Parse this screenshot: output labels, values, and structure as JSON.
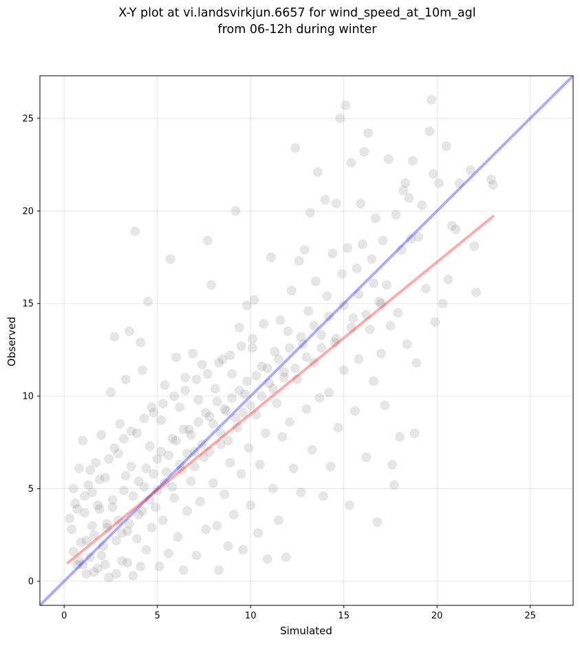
{
  "chart_data": {
    "type": "scatter",
    "title_line1": "X-Y plot at vi.landsvirkjun.6657 for wind_speed_at_10m_agl",
    "title_line2": "from 06-12h during winter",
    "xlabel": "Simulated",
    "ylabel": "Observed",
    "xlim": [
      -1.3,
      27.3
    ],
    "ylim": [
      -1.3,
      27.3
    ],
    "xticks": [
      0,
      5,
      10,
      15,
      20,
      25
    ],
    "yticks": [
      0,
      5,
      10,
      15,
      20,
      25
    ],
    "grid": true,
    "colors": {
      "points": "#808080",
      "identity_line": "#0000ff",
      "fit_line": "#ff0000"
    },
    "identity_line": {
      "x": [
        -1.3,
        27.3
      ],
      "y": [
        -1.3,
        27.3
      ]
    },
    "fit_line": {
      "x": [
        0.2,
        23.0
      ],
      "y": [
        1.0,
        19.7
      ]
    },
    "points": [
      [
        0.3,
        3.4
      ],
      [
        0.4,
        2.8
      ],
      [
        0.5,
        1.6
      ],
      [
        0.6,
        4.2
      ],
      [
        0.7,
        0.9
      ],
      [
        0.8,
        6.1
      ],
      [
        0.9,
        2.1
      ],
      [
        1.0,
        7.6
      ],
      [
        1.1,
        3.7
      ],
      [
        1.2,
        0.4
      ],
      [
        1.3,
        5.2
      ],
      [
        1.4,
        1.3
      ],
      [
        1.5,
        4.8
      ],
      [
        1.6,
        2.5
      ],
      [
        1.7,
        6.4
      ],
      [
        1.8,
        0.7
      ],
      [
        1.9,
        3.9
      ],
      [
        2.0,
        7.9
      ],
      [
        2.1,
        1.9
      ],
      [
        2.2,
        5.6
      ],
      [
        2.3,
        3.1
      ],
      [
        2.4,
        0.2
      ],
      [
        2.5,
        10.2
      ],
      [
        2.6,
        4.4
      ],
      [
        2.7,
        13.2
      ],
      [
        2.8,
        2.2
      ],
      [
        2.9,
        6.9
      ],
      [
        3.0,
        8.5
      ],
      [
        3.1,
        1.1
      ],
      [
        3.2,
        4.9
      ],
      [
        3.3,
        10.9
      ],
      [
        3.4,
        2.7
      ],
      [
        3.5,
        13.5
      ],
      [
        3.6,
        6.2
      ],
      [
        3.7,
        0.3
      ],
      [
        3.8,
        18.9
      ],
      [
        3.9,
        8.0
      ],
      [
        4.0,
        3.6
      ],
      [
        4.1,
        12.9
      ],
      [
        4.2,
        11.4
      ],
      [
        4.3,
        5.1
      ],
      [
        4.4,
        1.7
      ],
      [
        4.5,
        15.1
      ],
      [
        4.6,
        7.3
      ],
      [
        4.7,
        2.9
      ],
      [
        4.8,
        9.1
      ],
      [
        4.9,
        4.0
      ],
      [
        5.0,
        6.6
      ],
      [
        5.1,
        0.8
      ],
      [
        5.2,
        8.7
      ],
      [
        5.3,
        3.3
      ],
      [
        5.4,
        10.6
      ],
      [
        5.5,
        5.9
      ],
      [
        5.6,
        1.5
      ],
      [
        5.7,
        17.4
      ],
      [
        5.8,
        7.7
      ],
      [
        5.9,
        4.5
      ],
      [
        6.0,
        12.1
      ],
      [
        6.1,
        2.4
      ],
      [
        6.2,
        9.4
      ],
      [
        6.3,
        6.0
      ],
      [
        6.4,
        0.6
      ],
      [
        6.5,
        11.0
      ],
      [
        6.6,
        3.8
      ],
      [
        6.7,
        8.2
      ],
      [
        6.8,
        5.4
      ],
      [
        6.9,
        12.3
      ],
      [
        7.0,
        7.0
      ],
      [
        7.1,
        1.4
      ],
      [
        7.2,
        9.8
      ],
      [
        7.3,
        4.3
      ],
      [
        7.4,
        11.7
      ],
      [
        7.5,
        6.7
      ],
      [
        7.6,
        2.8
      ],
      [
        7.7,
        18.4
      ],
      [
        7.8,
        8.9
      ],
      [
        7.9,
        16.0
      ],
      [
        8.0,
        5.3
      ],
      [
        8.1,
        10.4
      ],
      [
        8.2,
        3.0
      ],
      [
        8.3,
        0.6
      ],
      [
        8.4,
        7.4
      ],
      [
        8.5,
        12.0
      ],
      [
        8.6,
        4.7
      ],
      [
        8.7,
        9.2
      ],
      [
        8.8,
        1.9
      ],
      [
        8.9,
        6.4
      ],
      [
        9.0,
        11.2
      ],
      [
        9.1,
        3.6
      ],
      [
        9.2,
        20.0
      ],
      [
        9.3,
        8.3
      ],
      [
        9.4,
        13.7
      ],
      [
        9.5,
        5.8
      ],
      [
        9.6,
        1.7
      ],
      [
        9.7,
        10.1
      ],
      [
        9.8,
        14.9
      ],
      [
        9.9,
        7.2
      ],
      [
        10.0,
        4.1
      ],
      [
        10.1,
        12.6
      ],
      [
        10.2,
        15.2
      ],
      [
        10.3,
        9.0
      ],
      [
        10.4,
        2.6
      ],
      [
        10.5,
        6.3
      ],
      [
        10.6,
        11.6
      ],
      [
        10.7,
        13.9
      ],
      [
        10.8,
        8.0
      ],
      [
        10.9,
        1.2
      ],
      [
        11.0,
        10.7
      ],
      [
        11.1,
        17.5
      ],
      [
        11.2,
        5.0
      ],
      [
        11.3,
        12.4
      ],
      [
        11.4,
        9.6
      ],
      [
        11.5,
        3.3
      ],
      [
        11.6,
        14.1
      ],
      [
        11.7,
        7.8
      ],
      [
        11.8,
        11.3
      ],
      [
        11.9,
        1.3
      ],
      [
        12.0,
        13.5
      ],
      [
        12.1,
        8.6
      ],
      [
        12.2,
        15.7
      ],
      [
        12.3,
        6.1
      ],
      [
        12.4,
        23.4
      ],
      [
        12.5,
        10.9
      ],
      [
        12.6,
        17.3
      ],
      [
        12.7,
        4.8
      ],
      [
        12.8,
        12.8
      ],
      [
        12.9,
        17.9
      ],
      [
        13.0,
        9.3
      ],
      [
        13.1,
        14.6
      ],
      [
        13.2,
        19.9
      ],
      [
        13.3,
        7.1
      ],
      [
        13.4,
        11.8
      ],
      [
        13.5,
        16.2
      ],
      [
        13.6,
        22.1
      ],
      [
        13.7,
        9.9
      ],
      [
        13.8,
        13.3
      ],
      [
        13.9,
        4.6
      ],
      [
        14.0,
        20.6
      ],
      [
        14.1,
        15.4
      ],
      [
        14.2,
        10.2
      ],
      [
        14.3,
        6.2
      ],
      [
        14.4,
        17.7
      ],
      [
        14.5,
        12.9
      ],
      [
        14.6,
        20.4
      ],
      [
        14.7,
        8.3
      ],
      [
        14.8,
        25.0
      ],
      [
        14.9,
        16.6
      ],
      [
        15.0,
        11.4
      ],
      [
        15.1,
        25.7
      ],
      [
        15.2,
        18.0
      ],
      [
        15.3,
        4.1
      ],
      [
        15.4,
        22.6
      ],
      [
        15.5,
        14.2
      ],
      [
        15.6,
        9.2
      ],
      [
        15.7,
        16.9
      ],
      [
        15.8,
        12.0
      ],
      [
        15.9,
        20.4
      ],
      [
        16.0,
        18.2
      ],
      [
        16.1,
        23.2
      ],
      [
        16.2,
        6.7
      ],
      [
        16.3,
        24.2
      ],
      [
        16.4,
        13.6
      ],
      [
        16.5,
        17.4
      ],
      [
        16.6,
        10.8
      ],
      [
        16.7,
        19.6
      ],
      [
        16.8,
        3.2
      ],
      [
        16.9,
        15.1
      ],
      [
        17.0,
        12.3
      ],
      [
        17.1,
        18.4
      ],
      [
        17.2,
        9.5
      ],
      [
        17.3,
        16.0
      ],
      [
        17.4,
        22.8
      ],
      [
        17.5,
        13.8
      ],
      [
        17.6,
        6.3
      ],
      [
        17.7,
        5.2
      ],
      [
        17.8,
        19.8
      ],
      [
        17.9,
        14.5
      ],
      [
        18.0,
        7.8
      ],
      [
        18.1,
        17.9
      ],
      [
        18.2,
        21.1
      ],
      [
        18.3,
        21.5
      ],
      [
        18.4,
        12.8
      ],
      [
        18.5,
        20.7
      ],
      [
        18.6,
        18.5
      ],
      [
        18.7,
        22.7
      ],
      [
        18.8,
        8.0
      ],
      [
        18.9,
        11.8
      ],
      [
        19.0,
        18.6
      ],
      [
        19.2,
        20.3
      ],
      [
        19.4,
        15.8
      ],
      [
        19.6,
        24.3
      ],
      [
        19.7,
        26.0
      ],
      [
        19.8,
        22.0
      ],
      [
        19.9,
        14.0
      ],
      [
        20.1,
        21.5
      ],
      [
        20.3,
        15.0
      ],
      [
        20.5,
        23.5
      ],
      [
        20.6,
        16.3
      ],
      [
        20.8,
        19.2
      ],
      [
        21.0,
        19.0
      ],
      [
        21.2,
        21.5
      ],
      [
        21.8,
        22.2
      ],
      [
        22.0,
        18.1
      ],
      [
        22.1,
        15.6
      ],
      [
        22.9,
        21.7
      ],
      [
        23.0,
        21.4
      ],
      [
        0.8,
        1.1
      ],
      [
        1.0,
        0.9
      ],
      [
        1.2,
        2.2
      ],
      [
        1.5,
        3.0
      ],
      [
        1.8,
        4.1
      ],
      [
        2.0,
        1.4
      ],
      [
        2.3,
        2.9
      ],
      [
        2.6,
        4.0
      ],
      [
        2.9,
        3.3
      ],
      [
        3.1,
        2.6
      ],
      [
        3.3,
        5.7
      ],
      [
        3.5,
        3.1
      ],
      [
        3.7,
        4.6
      ],
      [
        3.9,
        2.3
      ],
      [
        4.0,
        5.4
      ],
      [
        4.2,
        3.8
      ],
      [
        4.4,
        6.1
      ],
      [
        4.6,
        4.4
      ],
      [
        4.8,
        5.8
      ],
      [
        5.0,
        4.9
      ],
      [
        5.2,
        7.0
      ],
      [
        5.4,
        5.3
      ],
      [
        5.6,
        6.8
      ],
      [
        5.8,
        5.1
      ],
      [
        6.0,
        7.6
      ],
      [
        6.2,
        6.3
      ],
      [
        6.4,
        8.2
      ],
      [
        6.6,
        6.9
      ],
      [
        6.8,
        7.9
      ],
      [
        7.0,
        6.2
      ],
      [
        7.2,
        8.6
      ],
      [
        7.4,
        7.4
      ],
      [
        7.6,
        9.1
      ],
      [
        7.8,
        7.0
      ],
      [
        8.0,
        8.5
      ],
      [
        8.2,
        9.7
      ],
      [
        8.4,
        8.0
      ],
      [
        8.6,
        9.3
      ],
      [
        8.8,
        7.6
      ],
      [
        9.0,
        9.9
      ],
      [
        9.2,
        8.8
      ],
      [
        9.4,
        10.3
      ],
      [
        9.6,
        9.1
      ],
      [
        9.8,
        10.8
      ],
      [
        10.0,
        9.5
      ],
      [
        10.3,
        11.1
      ],
      [
        10.6,
        10.0
      ],
      [
        10.9,
        11.5
      ],
      [
        11.2,
        10.4
      ],
      [
        11.5,
        12.0
      ],
      [
        11.8,
        11.0
      ],
      [
        12.1,
        12.6
      ],
      [
        12.4,
        11.5
      ],
      [
        12.7,
        13.2
      ],
      [
        13.0,
        12.1
      ],
      [
        13.4,
        13.8
      ],
      [
        13.8,
        12.6
      ],
      [
        14.2,
        14.3
      ],
      [
        14.6,
        13.1
      ],
      [
        15.0,
        14.9
      ],
      [
        15.4,
        13.7
      ],
      [
        15.8,
        15.5
      ],
      [
        16.2,
        14.4
      ],
      [
        16.6,
        16.1
      ],
      [
        17.0,
        15.0
      ],
      [
        1.6,
        0.5
      ],
      [
        2.2,
        0.9
      ],
      [
        2.8,
        0.4
      ],
      [
        3.4,
        1.0
      ],
      [
        4.1,
        0.8
      ],
      [
        0.5,
        5.0
      ],
      [
        0.7,
        3.9
      ],
      [
        1.1,
        4.6
      ],
      [
        1.4,
        6.0
      ],
      [
        1.9,
        5.5
      ],
      [
        2.4,
        6.6
      ],
      [
        2.7,
        7.2
      ],
      [
        3.2,
        7.7
      ],
      [
        3.6,
        8.1
      ],
      [
        4.3,
        8.8
      ],
      [
        4.7,
        9.4
      ],
      [
        5.3,
        9.6
      ],
      [
        5.9,
        10.0
      ],
      [
        6.5,
        10.3
      ],
      [
        7.1,
        10.9
      ],
      [
        7.7,
        11.2
      ],
      [
        8.3,
        11.8
      ],
      [
        8.9,
        12.2
      ],
      [
        9.5,
        12.7
      ],
      [
        10.1,
        13.1
      ]
    ]
  }
}
